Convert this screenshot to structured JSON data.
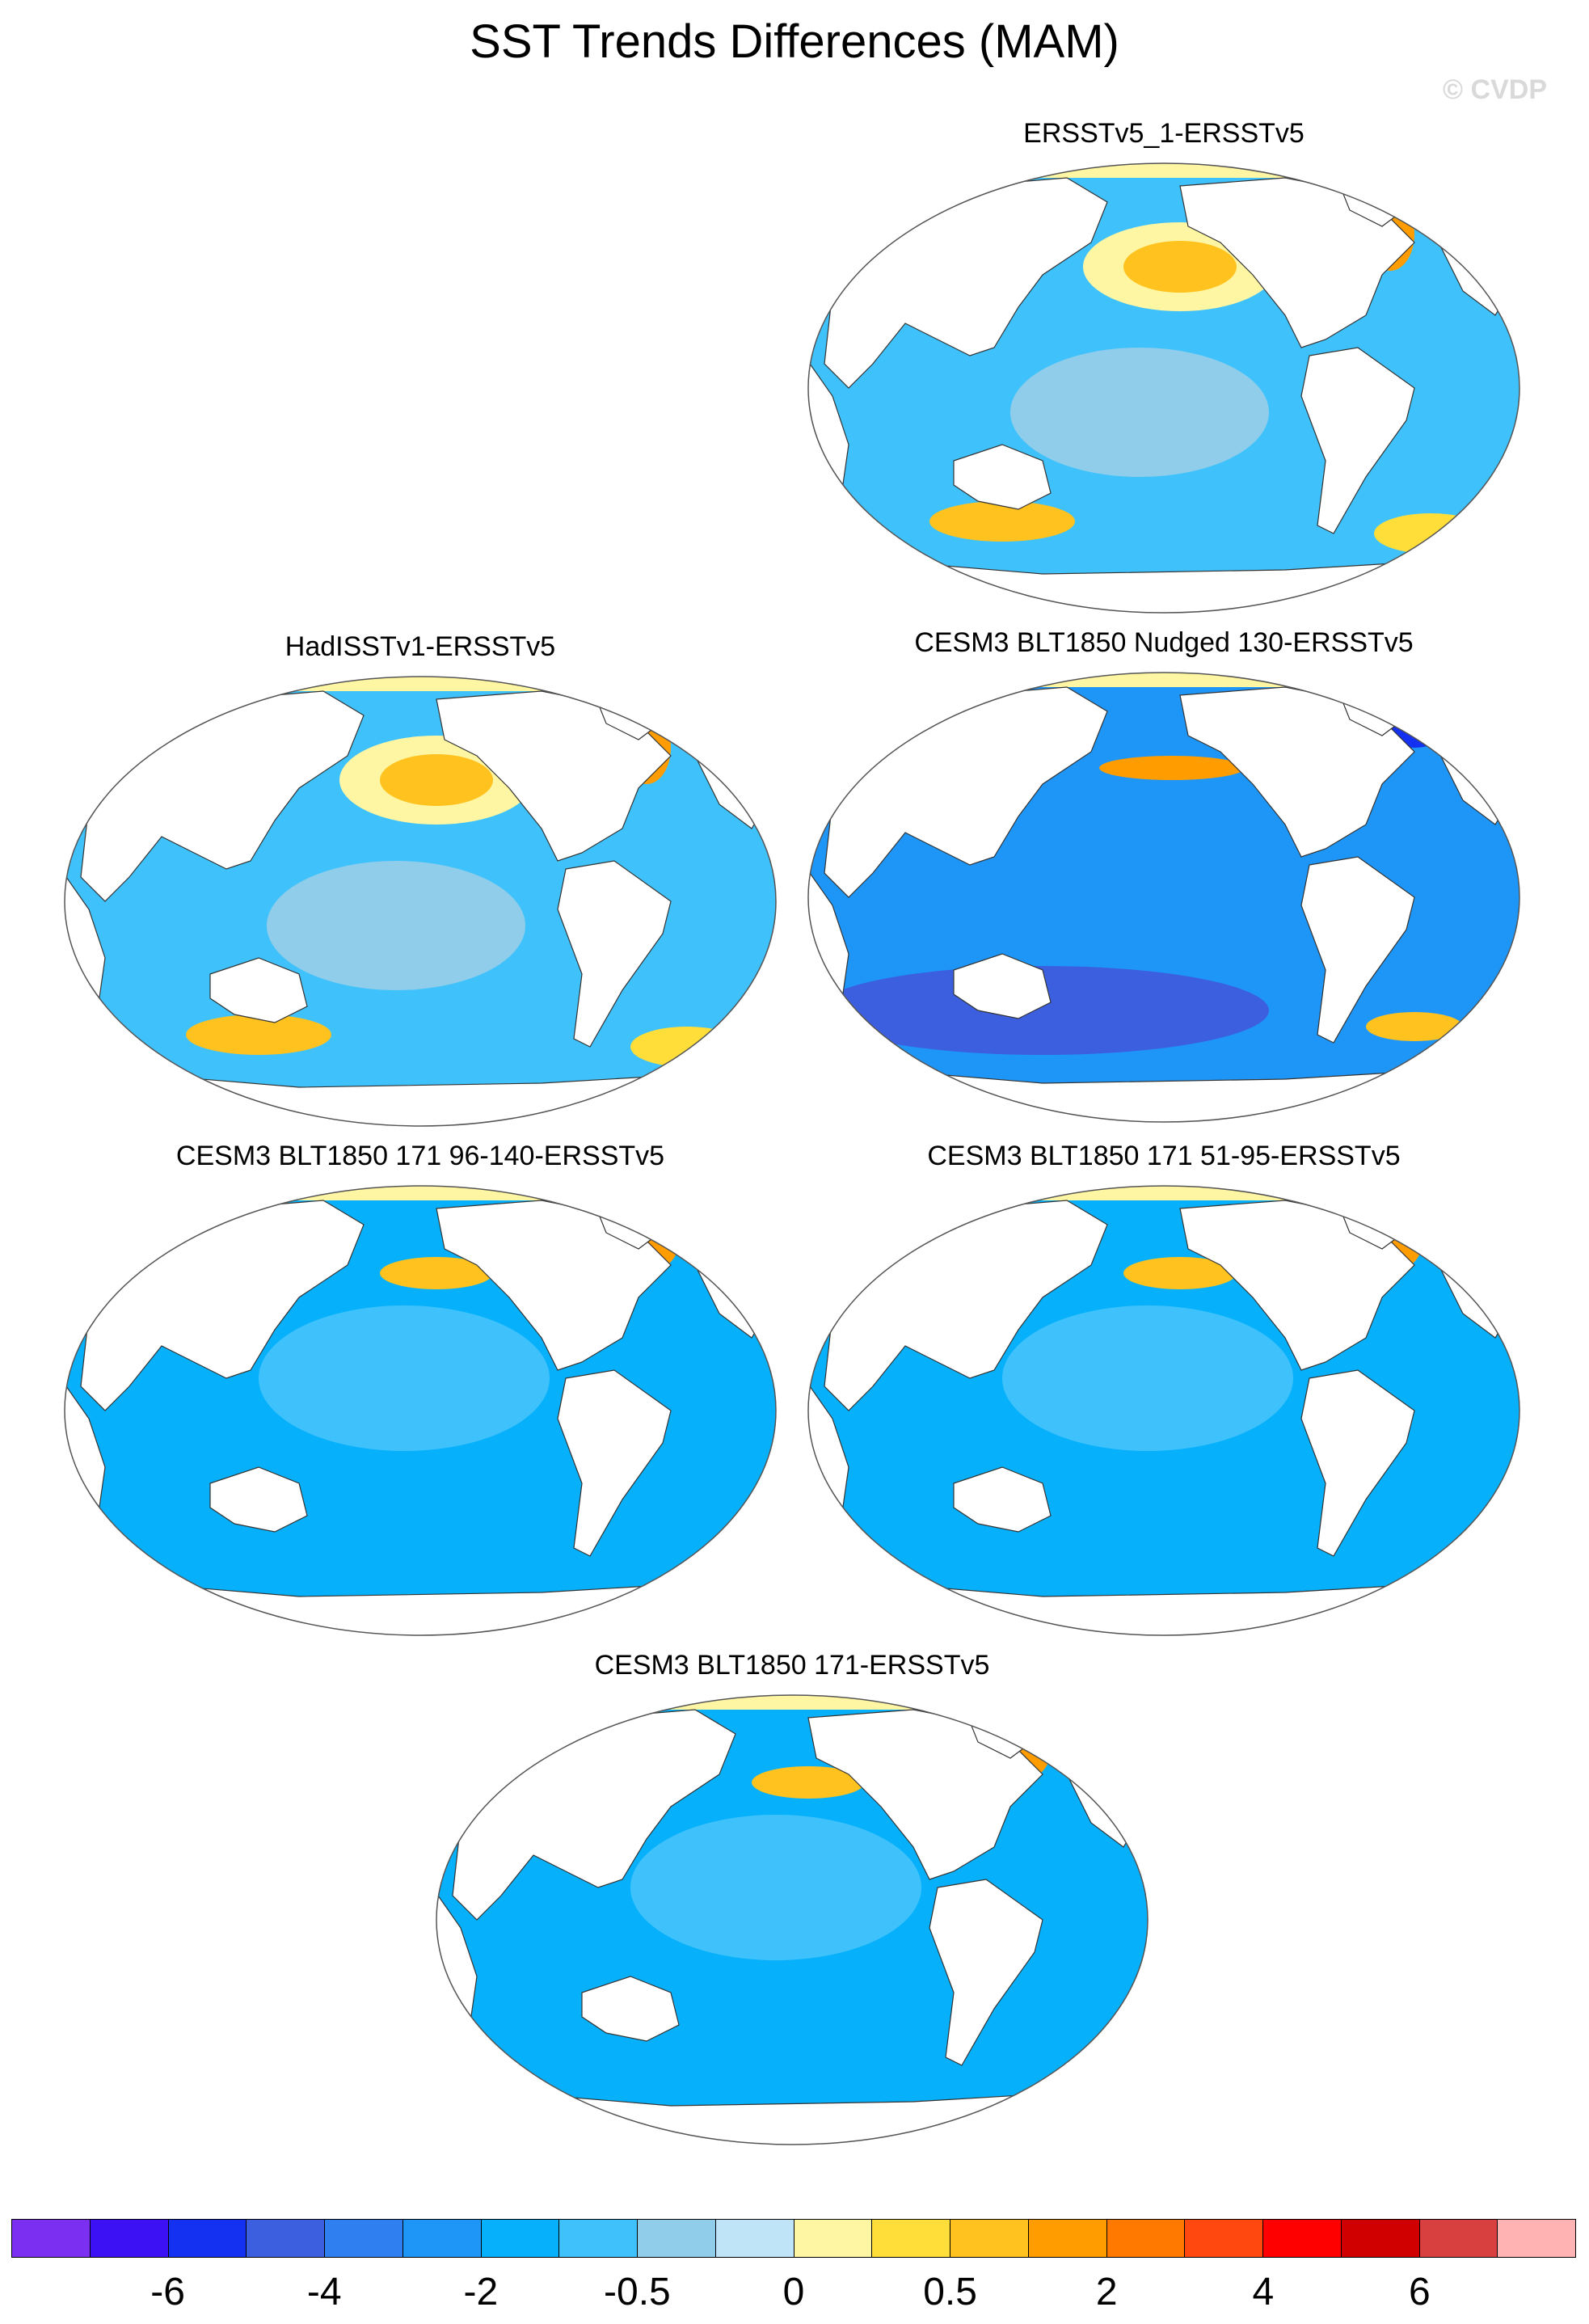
{
  "title": "SST Trends Differences (MAM)",
  "watermark": "© CVDP",
  "panels": [
    {
      "title": "ERSSTv5_1-ERSSTv5",
      "palette": "mixed"
    },
    {
      "title": "HadISSTv1-ERSSTv5",
      "palette": "mixed"
    },
    {
      "title": "CESM3 BLT1850 Nudged 130-ERSSTv5",
      "palette": "dark"
    },
    {
      "title": "CESM3 BLT1850 171 96-140-ERSSTv5",
      "palette": "cool"
    },
    {
      "title": "CESM3 BLT1850 171 51-95-ERSSTv5",
      "palette": "cool"
    },
    {
      "title": "CESM3 BLT1850 171-ERSSTv5",
      "palette": "cool"
    }
  ],
  "colorbar": {
    "colors": [
      "#7b2ff0",
      "#3c12f5",
      "#1430f0",
      "#3c5fe0",
      "#2f7ff0",
      "#1e96f8",
      "#06b0fb",
      "#3fc2fb",
      "#8fcdea",
      "#bfe4f7",
      "#fff6a3",
      "#ffde3a",
      "#ffc21e",
      "#ff9c00",
      "#ff7800",
      "#ff4810",
      "#ff0000",
      "#d00000",
      "#d84040",
      "#ffb3b3"
    ],
    "labels": [
      "-6",
      "-4",
      "-2",
      "-0.5",
      "0",
      "0.5",
      "2",
      "4",
      "6"
    ]
  }
}
